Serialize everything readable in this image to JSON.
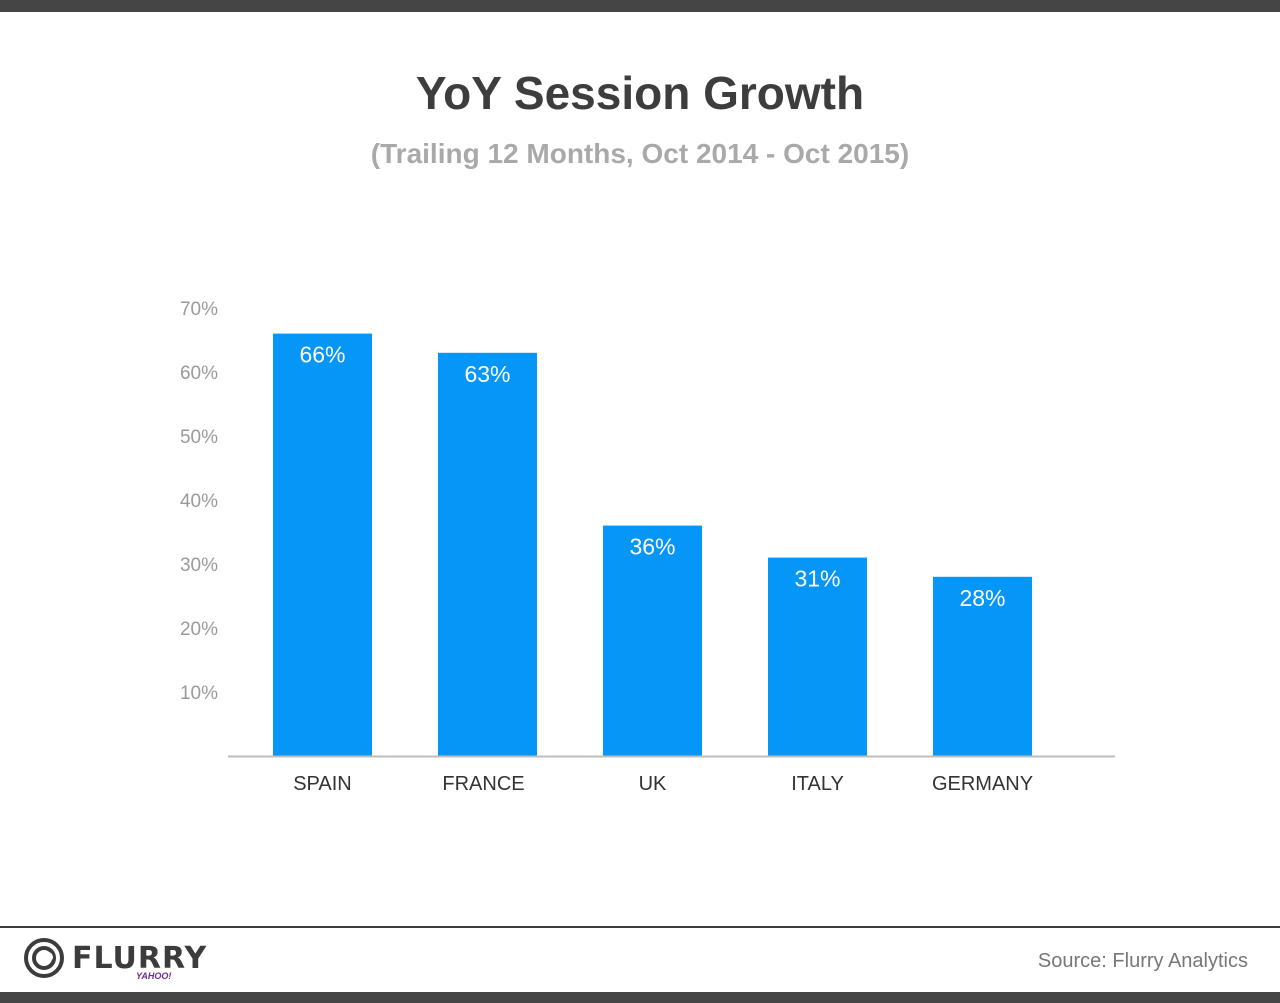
{
  "header": {
    "title": "YoY Session Growth",
    "subtitle": "(Trailing 12 Months, Oct 2014 - Oct 2015)"
  },
  "footer": {
    "source": "Source: Flurry Analytics",
    "logo_text": "FLURRY",
    "logo_subtext": "YAHOO!"
  },
  "colors": {
    "bar": "#0696f7",
    "axis": "#bdbdbd",
    "bars_frame": "#454545"
  },
  "chart_data": {
    "type": "bar",
    "categories": [
      "SPAIN",
      "FRANCE",
      "UK",
      "ITALY",
      "GERMANY"
    ],
    "values": [
      66,
      63,
      36,
      31,
      28
    ],
    "value_labels": [
      "66%",
      "63%",
      "36%",
      "31%",
      "28%"
    ],
    "yticks": [
      10,
      20,
      30,
      40,
      50,
      60,
      70
    ],
    "ytick_labels": [
      "10%",
      "20%",
      "30%",
      "40%",
      "50%",
      "60%",
      "70%"
    ],
    "ylim": [
      0,
      70
    ],
    "title": "YoY Session Growth",
    "subtitle": "(Trailing 12 Months, Oct 2014 - Oct 2015)",
    "xlabel": "",
    "ylabel": "",
    "grid": false,
    "legend": "none"
  }
}
